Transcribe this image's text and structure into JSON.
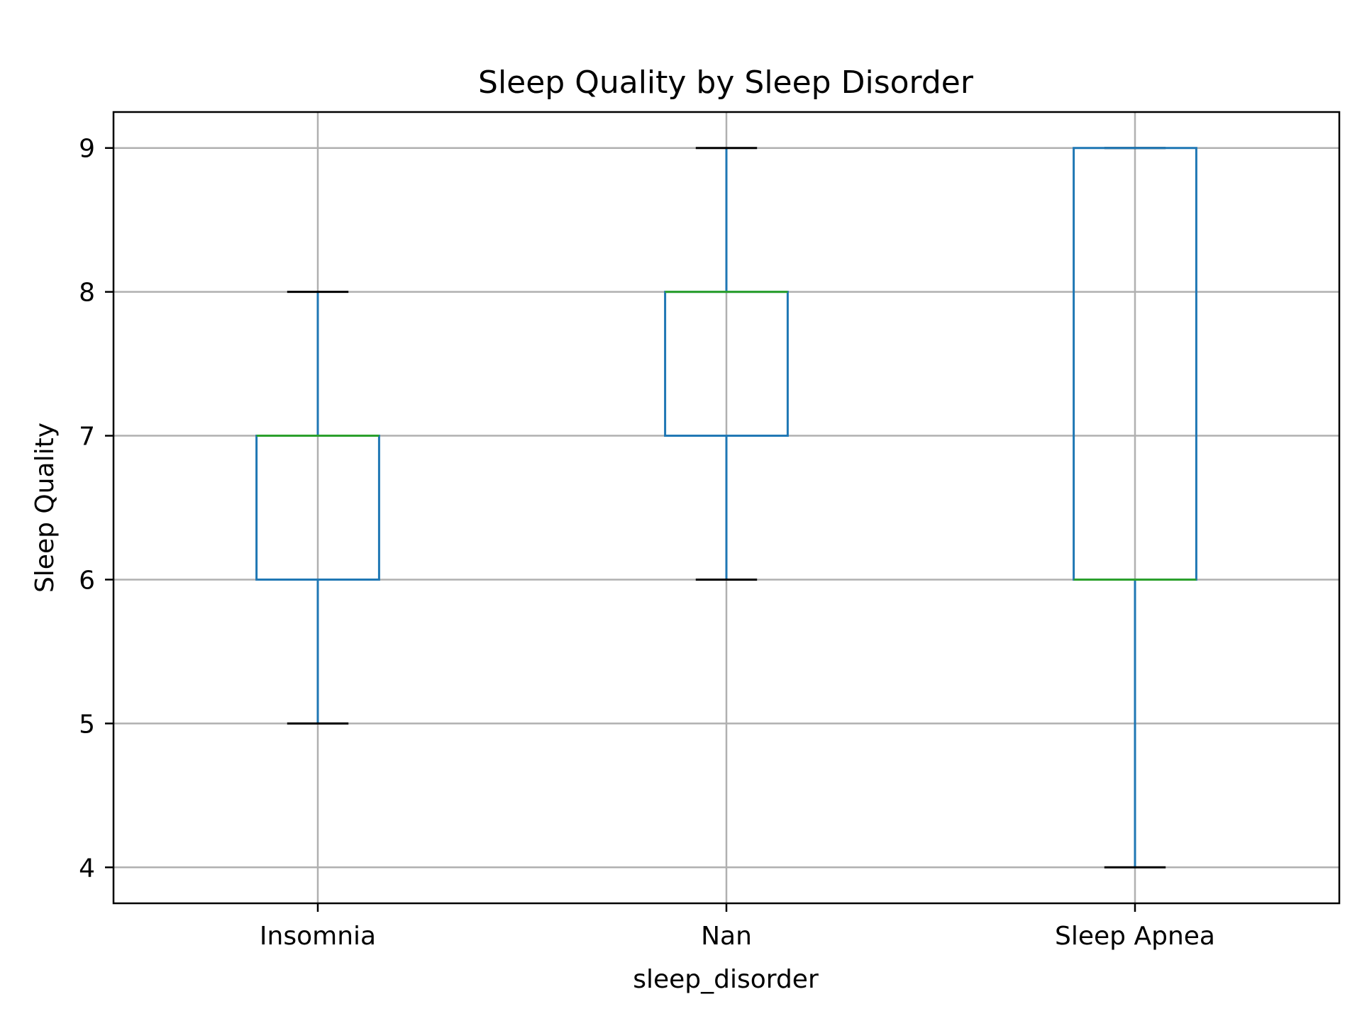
{
  "chart_data": {
    "type": "box",
    "title": "Sleep Quality by Sleep Disorder",
    "xlabel": "sleep_disorder",
    "ylabel": "Sleep Quality",
    "categories": [
      "Insomnia",
      "Nan",
      "Sleep Apnea"
    ],
    "boxes": [
      {
        "category": "Insomnia",
        "whisker_low": 5,
        "q1": 6,
        "median": 7,
        "q3": 7,
        "whisker_high": 8
      },
      {
        "category": "Nan",
        "whisker_low": 6,
        "q1": 7,
        "median": 8,
        "q3": 8,
        "whisker_high": 9
      },
      {
        "category": "Sleep Apnea",
        "whisker_low": 4,
        "q1": 6,
        "median": 6,
        "q3": 9,
        "whisker_high": 9
      }
    ],
    "yticks": [
      4,
      5,
      6,
      7,
      8,
      9
    ],
    "ylim": [
      3.75,
      9.25
    ],
    "grid": true,
    "colors": {
      "box": "#1f77b4",
      "median": "#2ca02c",
      "cap": "#000000",
      "grid": "#b0b0b0"
    }
  }
}
